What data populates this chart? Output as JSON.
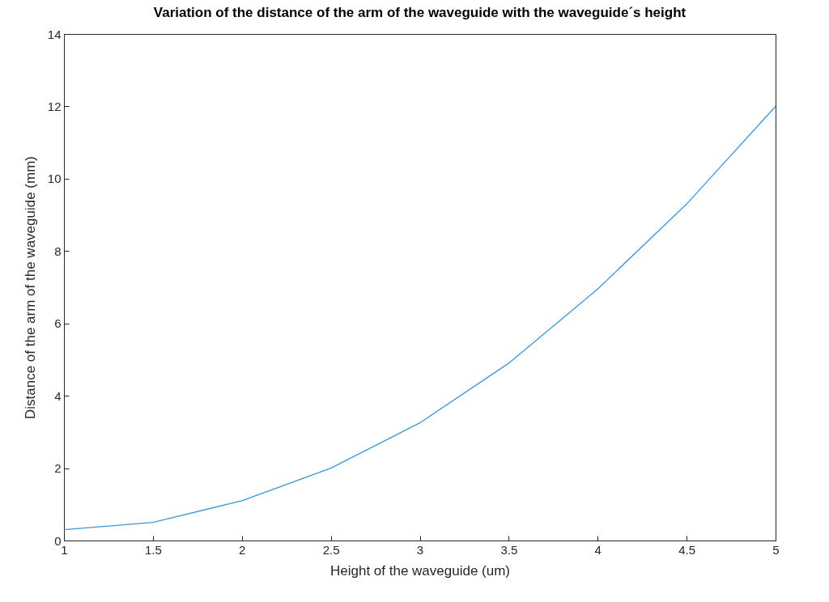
{
  "chart_data": {
    "type": "line",
    "title": "Variation of the distance of the arm of the waveguide with the waveguide´s height",
    "xlabel": "Height of the waveguide (um)",
    "ylabel": "Distance of the arm of the waveguide (mm)",
    "x": [
      1,
      1.5,
      2,
      2.5,
      3,
      3.5,
      4,
      4.5,
      5
    ],
    "series": [
      {
        "color": "#3b96d8",
        "values": [
          0.3,
          0.5,
          1.1,
          2.0,
          3.25,
          4.9,
          6.95,
          9.3,
          12.0
        ]
      }
    ],
    "xlim": [
      1,
      5
    ],
    "xticks": [
      1,
      1.5,
      2,
      2.5,
      3,
      3.5,
      4,
      4.5,
      5
    ],
    "ylim": [
      0,
      14
    ],
    "yticks": [
      0,
      2,
      4,
      6,
      8,
      10,
      12,
      14
    ],
    "grid": false,
    "marker": "none",
    "line_style": "solid"
  }
}
